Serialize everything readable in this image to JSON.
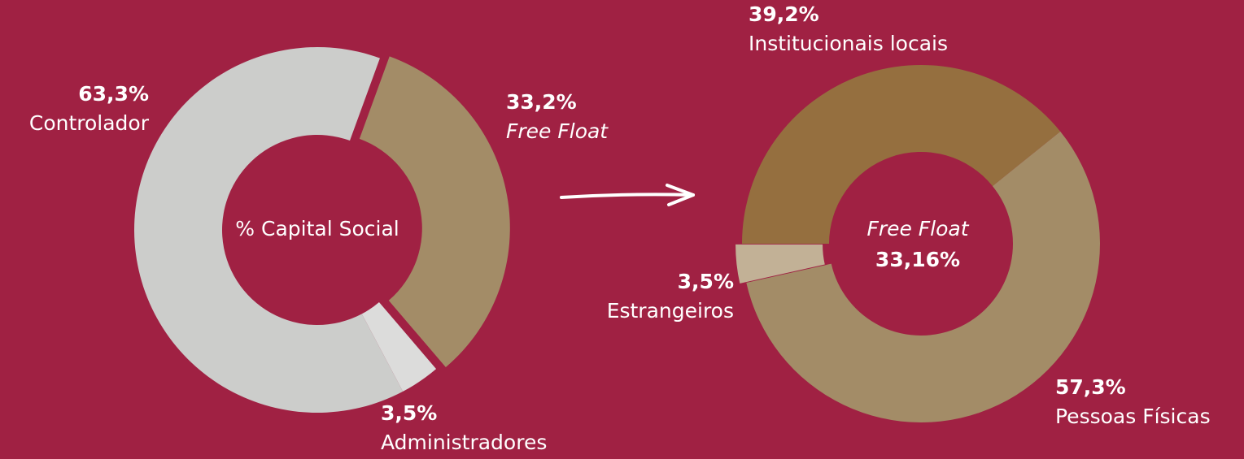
{
  "chart_data": [
    {
      "type": "donut",
      "center_label": "% Capital Social",
      "categories": [
        "Free Float",
        "Administradores",
        "Controlador"
      ],
      "values": [
        33.2,
        3.5,
        63.3
      ],
      "value_labels": [
        "33,2%",
        "3,5%",
        "63,3%"
      ],
      "colors": [
        "#a38c67",
        "#dcdcdb",
        "#cccdcb"
      ]
    },
    {
      "type": "donut",
      "center_label": "Free Float",
      "center_value_label": "33,16%",
      "categories": [
        "Institucionais locais",
        "Pessoas Físicas",
        "Estrangeiros"
      ],
      "values": [
        39.2,
        57.3,
        3.5
      ],
      "value_labels": [
        "39,2%",
        "57,3%",
        "3,5%"
      ],
      "colors": [
        "#956f3f",
        "#a38c67",
        "#c2b196"
      ]
    }
  ]
}
